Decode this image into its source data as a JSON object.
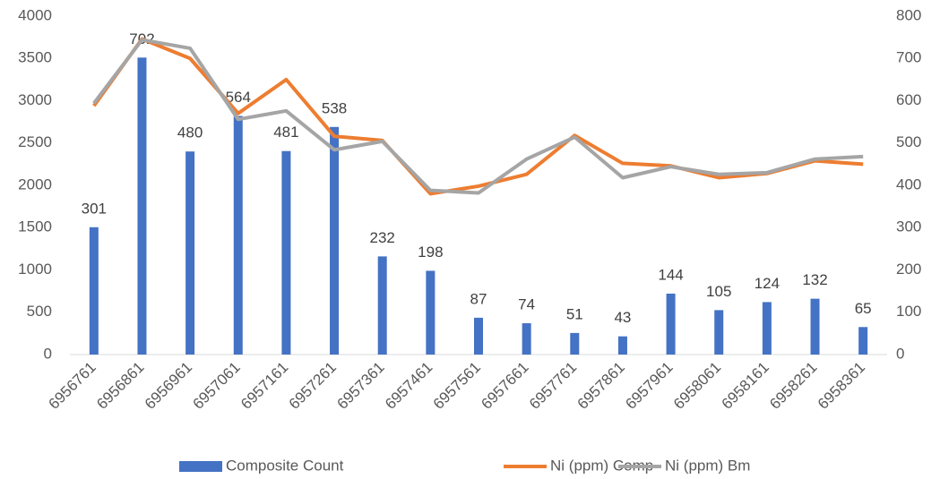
{
  "chart_data": {
    "type": "bar_line",
    "categories": [
      "6956761",
      "6956861",
      "6956961",
      "6957061",
      "6957161",
      "6957261",
      "6957361",
      "6957461",
      "6957561",
      "6957661",
      "6957761",
      "6957861",
      "6957961",
      "6958061",
      "6958161",
      "6958261",
      "6958361"
    ],
    "series": [
      {
        "name": "Composite Count",
        "color": "#4472c4",
        "type": "bar",
        "axis": "y2",
        "values": [
          301,
          702,
          480,
          564,
          481,
          538,
          232,
          198,
          87,
          74,
          51,
          43,
          144,
          105,
          124,
          132,
          65
        ]
      },
      {
        "name": "Ni (ppm) Comp",
        "color": "#ed7d31",
        "type": "line",
        "axis": "y",
        "values": [
          2940,
          3730,
          3500,
          2850,
          3250,
          2580,
          2530,
          1900,
          1990,
          2130,
          2590,
          2260,
          2230,
          2090,
          2140,
          2290,
          2250
        ]
      },
      {
        "name": "Ni (ppm) Bm",
        "color": "#a5a5a5",
        "type": "line",
        "axis": "y",
        "values": [
          2970,
          3720,
          3620,
          2780,
          2880,
          2420,
          2520,
          1940,
          1910,
          2310,
          2570,
          2090,
          2220,
          2130,
          2150,
          2310,
          2340
        ]
      }
    ],
    "ylim": [
      0,
      4000
    ],
    "yticks": [
      0,
      500,
      1000,
      1500,
      2000,
      2500,
      3000,
      3500,
      4000
    ],
    "y2lim": [
      0,
      800
    ],
    "y2ticks": [
      0,
      100,
      200,
      300,
      400,
      500,
      600,
      700,
      800
    ],
    "grid": false,
    "legend": "bottom"
  }
}
